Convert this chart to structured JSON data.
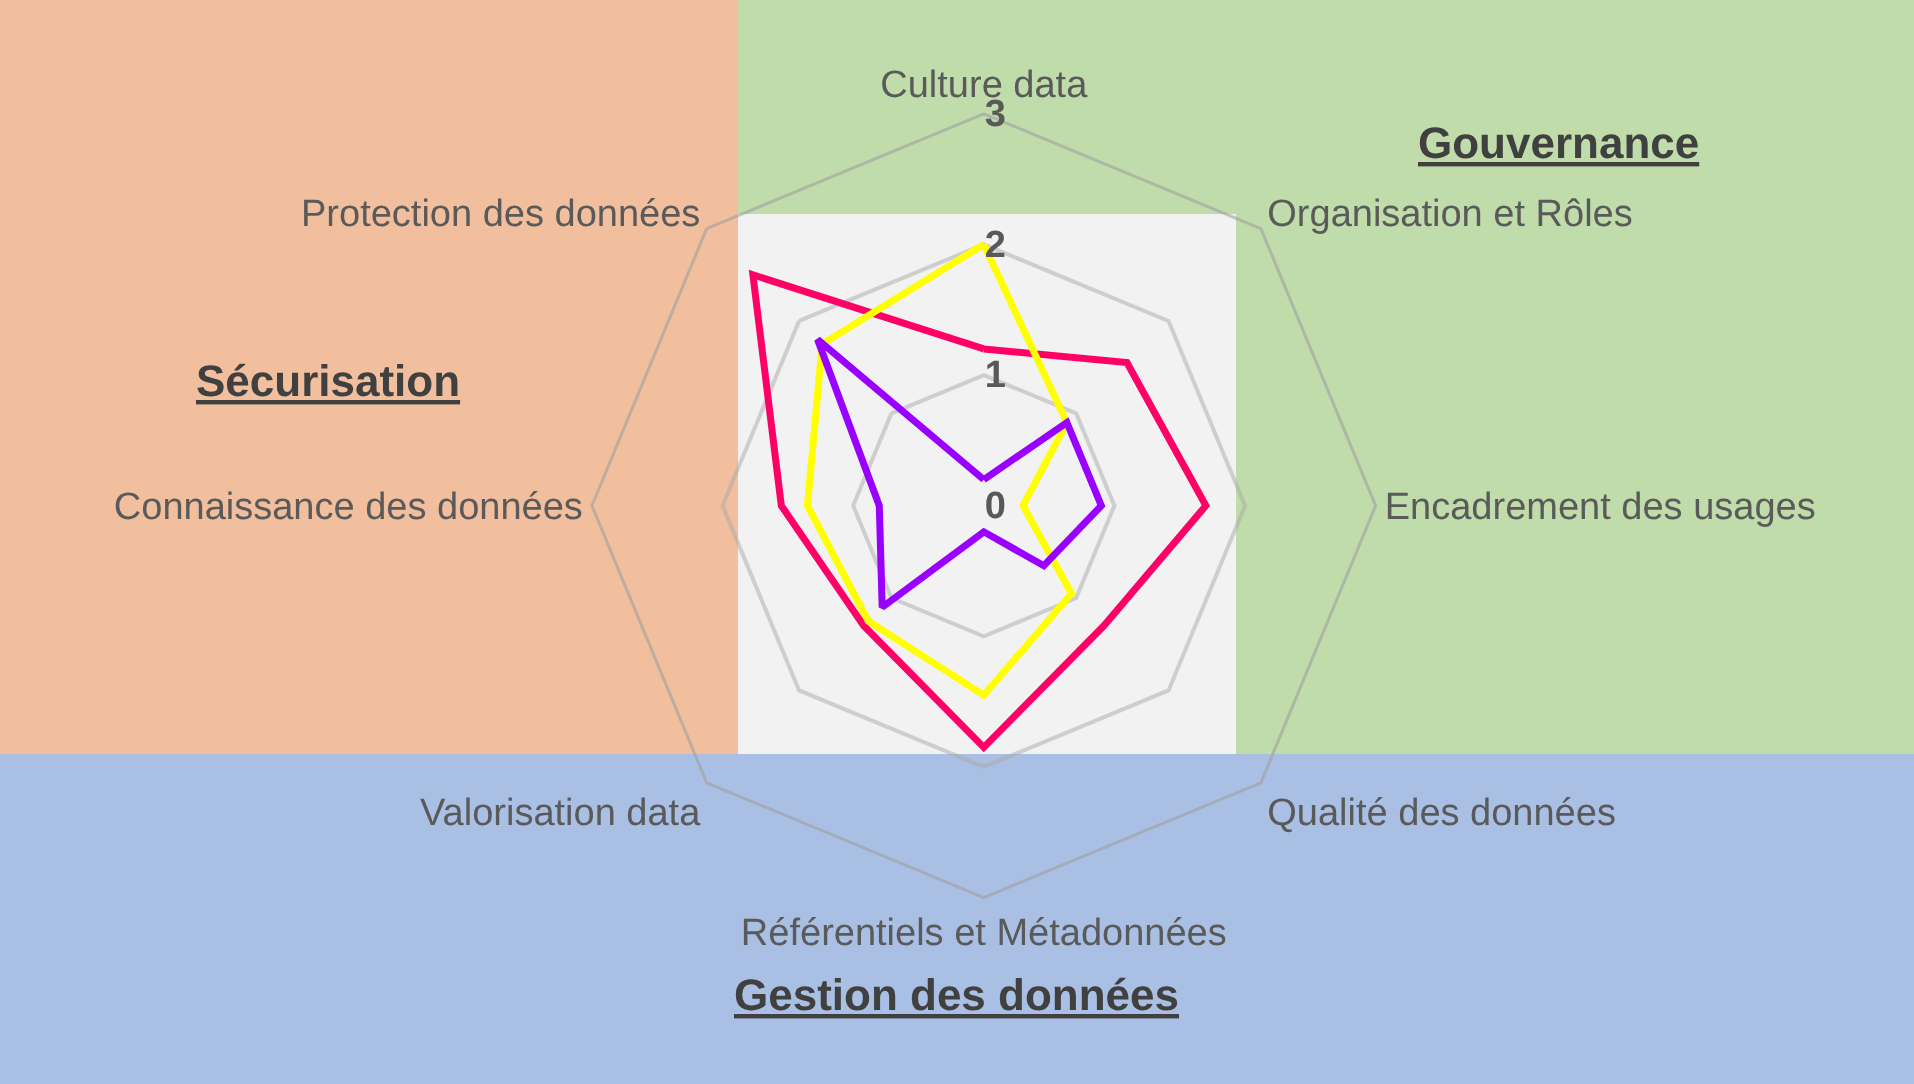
{
  "chart_data": {
    "type": "radar",
    "categories": [
      "Culture data",
      "Organisation et Rôles",
      "Encadrement des usages",
      "Qualité des données",
      "Référentiels et Métadonnées",
      "Valorisation data",
      "Connaissance des données",
      "Protection des données"
    ],
    "series": [
      {
        "color": "#ff0066",
        "values": [
          1.2,
          1.55,
          1.7,
          1.3,
          1.85,
          1.3,
          1.55,
          2.5
        ]
      },
      {
        "color": "#ffff00",
        "values": [
          2.0,
          0.9,
          0.3,
          0.95,
          1.45,
          1.25,
          1.35,
          1.75
        ]
      },
      {
        "color": "#9900ff",
        "values": [
          0.2,
          0.9,
          0.9,
          0.65,
          0.2,
          1.1,
          0.8,
          1.8
        ]
      }
    ],
    "ylim": [
      0,
      3
    ],
    "yticks": [
      0,
      1,
      2,
      3
    ],
    "grid": true,
    "annotations": [
      "Sécurisation",
      "Gouvernance",
      "Gestion des données"
    ]
  }
}
